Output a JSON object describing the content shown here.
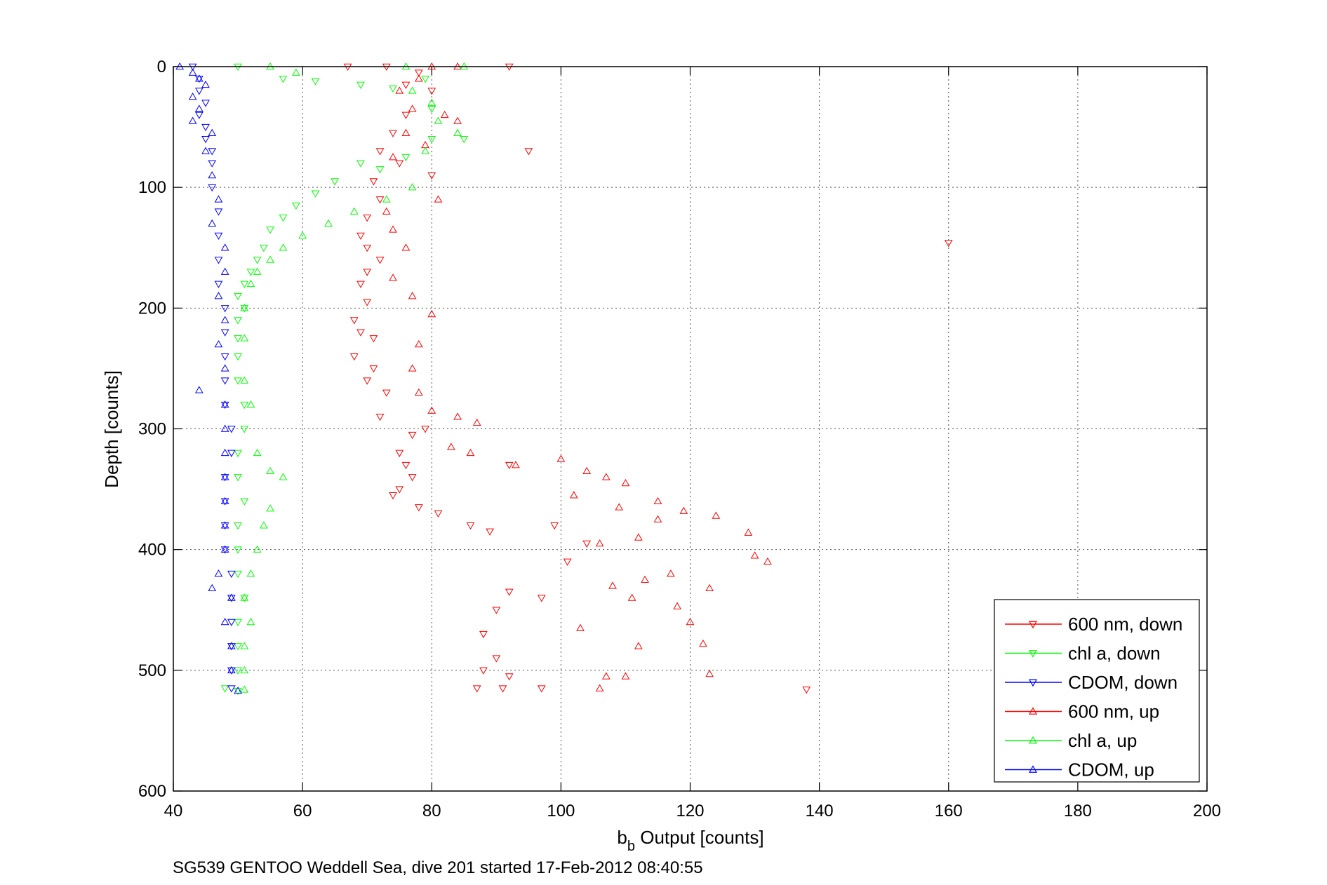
{
  "chart_data": {
    "type": "scatter",
    "title": "",
    "xlabel_main": "b",
    "xlabel_sub": "b",
    "xlabel_rest": " Output [counts]",
    "ylabel": "Depth [counts]",
    "xlim": [
      40,
      200
    ],
    "ylim": [
      0,
      600
    ],
    "y_reversed": true,
    "grid": true,
    "x_ticks": [
      "40",
      "60",
      "80",
      "100",
      "120",
      "140",
      "160",
      "180",
      "200"
    ],
    "y_ticks": [
      "0",
      "100",
      "200",
      "300",
      "400",
      "500",
      "600"
    ],
    "legend_position": "bottom-right",
    "caption": "SG539 GENTOO Weddell Sea, dive 201 started 17-Feb-2012 08:40:55",
    "series": [
      {
        "name": "600 nm, down",
        "color": "#ff0000",
        "marker": "triangle-down",
        "points": [
          [
            67,
            0
          ],
          [
            73,
            0
          ],
          [
            78,
            5
          ],
          [
            92,
            0
          ],
          [
            76,
            15
          ],
          [
            80,
            20
          ],
          [
            76,
            40
          ],
          [
            74,
            55
          ],
          [
            72,
            70
          ],
          [
            95,
            70
          ],
          [
            75,
            80
          ],
          [
            80,
            90
          ],
          [
            71,
            95
          ],
          [
            72,
            110
          ],
          [
            70,
            125
          ],
          [
            69,
            140
          ],
          [
            70,
            150
          ],
          [
            72,
            160
          ],
          [
            160,
            146
          ],
          [
            70,
            170
          ],
          [
            69,
            180
          ],
          [
            70,
            195
          ],
          [
            68,
            210
          ],
          [
            69,
            220
          ],
          [
            71,
            225
          ],
          [
            68,
            240
          ],
          [
            71,
            250
          ],
          [
            70,
            260
          ],
          [
            73,
            270
          ],
          [
            72,
            290
          ],
          [
            79,
            300
          ],
          [
            77,
            305
          ],
          [
            75,
            320
          ],
          [
            76,
            330
          ],
          [
            77,
            340
          ],
          [
            75,
            350
          ],
          [
            74,
            355
          ],
          [
            78,
            365
          ],
          [
            81,
            370
          ],
          [
            86,
            380
          ],
          [
            89,
            385
          ],
          [
            92,
            330
          ],
          [
            99,
            380
          ],
          [
            104,
            395
          ],
          [
            101,
            410
          ],
          [
            92,
            435
          ],
          [
            90,
            450
          ],
          [
            97,
            440
          ],
          [
            88,
            470
          ],
          [
            90,
            490
          ],
          [
            88,
            500
          ],
          [
            92,
            505
          ],
          [
            87,
            515
          ],
          [
            91,
            515
          ],
          [
            97,
            515
          ],
          [
            138,
            516
          ]
        ]
      },
      {
        "name": "chl a, down",
        "color": "#00ff00",
        "marker": "triangle-down",
        "points": [
          [
            50,
            0
          ],
          [
            57,
            10
          ],
          [
            62,
            12
          ],
          [
            69,
            15
          ],
          [
            74,
            18
          ],
          [
            79,
            10
          ],
          [
            80,
            35
          ],
          [
            85,
            60
          ],
          [
            80,
            60
          ],
          [
            76,
            75
          ],
          [
            72,
            85
          ],
          [
            69,
            80
          ],
          [
            65,
            95
          ],
          [
            62,
            105
          ],
          [
            59,
            115
          ],
          [
            57,
            125
          ],
          [
            55,
            135
          ],
          [
            54,
            150
          ],
          [
            53,
            160
          ],
          [
            52,
            170
          ],
          [
            51,
            180
          ],
          [
            50,
            190
          ],
          [
            51,
            200
          ],
          [
            50,
            210
          ],
          [
            50,
            225
          ],
          [
            50,
            240
          ],
          [
            50,
            260
          ],
          [
            51,
            280
          ],
          [
            51,
            300
          ],
          [
            50,
            320
          ],
          [
            50,
            340
          ],
          [
            51,
            360
          ],
          [
            50,
            380
          ],
          [
            50,
            400
          ],
          [
            50,
            420
          ],
          [
            51,
            440
          ],
          [
            50,
            460
          ],
          [
            50,
            480
          ],
          [
            50,
            500
          ],
          [
            48,
            515
          ],
          [
            50,
            517
          ]
        ]
      },
      {
        "name": "CDOM, down",
        "color": "#0000ff",
        "marker": "triangle-down",
        "points": [
          [
            43,
            0
          ],
          [
            44,
            10
          ],
          [
            44,
            20
          ],
          [
            45,
            30
          ],
          [
            44,
            40
          ],
          [
            45,
            50
          ],
          [
            45,
            60
          ],
          [
            46,
            70
          ],
          [
            46,
            80
          ],
          [
            46,
            100
          ],
          [
            47,
            120
          ],
          [
            47,
            140
          ],
          [
            47,
            160
          ],
          [
            47,
            180
          ],
          [
            48,
            200
          ],
          [
            48,
            220
          ],
          [
            48,
            240
          ],
          [
            48,
            260
          ],
          [
            48,
            280
          ],
          [
            49,
            300
          ],
          [
            49,
            320
          ],
          [
            48,
            340
          ],
          [
            48,
            360
          ],
          [
            48,
            380
          ],
          [
            48,
            400
          ],
          [
            49,
            420
          ],
          [
            49,
            440
          ],
          [
            49,
            460
          ],
          [
            49,
            480
          ],
          [
            49,
            500
          ],
          [
            49,
            515
          ]
        ]
      },
      {
        "name": "600 nm, up",
        "color": "#ff0000",
        "marker": "triangle-up",
        "points": [
          [
            80,
            0
          ],
          [
            84,
            0
          ],
          [
            78,
            10
          ],
          [
            75,
            20
          ],
          [
            77,
            35
          ],
          [
            82,
            40
          ],
          [
            84,
            45
          ],
          [
            76,
            55
          ],
          [
            79,
            65
          ],
          [
            74,
            75
          ],
          [
            81,
            110
          ],
          [
            73,
            120
          ],
          [
            74,
            135
          ],
          [
            76,
            150
          ],
          [
            74,
            175
          ],
          [
            77,
            190
          ],
          [
            80,
            205
          ],
          [
            78,
            230
          ],
          [
            77,
            250
          ],
          [
            78,
            270
          ],
          [
            80,
            285
          ],
          [
            84,
            290
          ],
          [
            87,
            295
          ],
          [
            83,
            315
          ],
          [
            86,
            320
          ],
          [
            93,
            330
          ],
          [
            100,
            325
          ],
          [
            104,
            335
          ],
          [
            107,
            340
          ],
          [
            110,
            345
          ],
          [
            102,
            355
          ],
          [
            109,
            365
          ],
          [
            115,
            360
          ],
          [
            119,
            368
          ],
          [
            124,
            372
          ],
          [
            115,
            375
          ],
          [
            129,
            386
          ],
          [
            112,
            390
          ],
          [
            106,
            395
          ],
          [
            130,
            405
          ],
          [
            132,
            410
          ],
          [
            117,
            420
          ],
          [
            113,
            425
          ],
          [
            108,
            430
          ],
          [
            123,
            432
          ],
          [
            111,
            440
          ],
          [
            118,
            447
          ],
          [
            120,
            460
          ],
          [
            103,
            465
          ],
          [
            122,
            478
          ],
          [
            112,
            480
          ],
          [
            123,
            503
          ],
          [
            107,
            505
          ],
          [
            110,
            505
          ],
          [
            106,
            515
          ]
        ]
      },
      {
        "name": "chl a, up",
        "color": "#00ff00",
        "marker": "triangle-up",
        "points": [
          [
            55,
            0
          ],
          [
            59,
            5
          ],
          [
            76,
            0
          ],
          [
            85,
            0
          ],
          [
            77,
            20
          ],
          [
            80,
            30
          ],
          [
            81,
            45
          ],
          [
            84,
            55
          ],
          [
            79,
            70
          ],
          [
            77,
            100
          ],
          [
            73,
            110
          ],
          [
            68,
            120
          ],
          [
            64,
            130
          ],
          [
            60,
            140
          ],
          [
            57,
            150
          ],
          [
            55,
            160
          ],
          [
            53,
            170
          ],
          [
            52,
            180
          ],
          [
            51,
            200
          ],
          [
            51,
            225
          ],
          [
            51,
            260
          ],
          [
            52,
            280
          ],
          [
            53,
            320
          ],
          [
            55,
            335
          ],
          [
            57,
            340
          ],
          [
            55,
            366
          ],
          [
            54,
            380
          ],
          [
            53,
            400
          ],
          [
            52,
            420
          ],
          [
            51,
            440
          ],
          [
            52,
            460
          ],
          [
            51,
            480
          ],
          [
            51,
            500
          ],
          [
            51,
            516
          ]
        ]
      },
      {
        "name": "CDOM, up",
        "color": "#0000ff",
        "marker": "triangle-up",
        "points": [
          [
            41,
            0
          ],
          [
            43,
            5
          ],
          [
            44,
            10
          ],
          [
            45,
            15
          ],
          [
            43,
            25
          ],
          [
            44,
            35
          ],
          [
            43,
            45
          ],
          [
            46,
            55
          ],
          [
            45,
            70
          ],
          [
            46,
            90
          ],
          [
            47,
            110
          ],
          [
            46,
            130
          ],
          [
            48,
            150
          ],
          [
            48,
            170
          ],
          [
            47,
            190
          ],
          [
            48,
            210
          ],
          [
            47,
            230
          ],
          [
            48,
            250
          ],
          [
            44,
            268
          ],
          [
            48,
            280
          ],
          [
            48,
            300
          ],
          [
            48,
            320
          ],
          [
            48,
            340
          ],
          [
            48,
            360
          ],
          [
            48,
            380
          ],
          [
            48,
            400
          ],
          [
            47,
            420
          ],
          [
            46,
            432
          ],
          [
            49,
            440
          ],
          [
            48,
            460
          ],
          [
            49,
            480
          ],
          [
            49,
            500
          ],
          [
            50,
            517
          ]
        ]
      }
    ]
  }
}
